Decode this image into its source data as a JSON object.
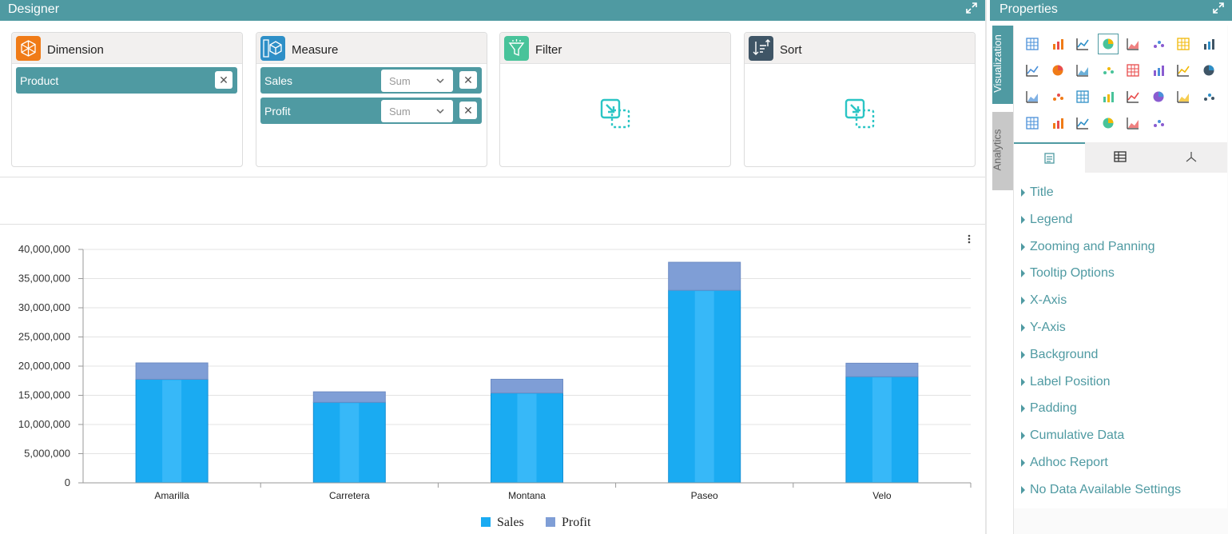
{
  "designer": {
    "title": "Designer",
    "wells": {
      "dimension": {
        "label": "Dimension",
        "fields": [
          {
            "name": "Product"
          }
        ]
      },
      "measure": {
        "label": "Measure",
        "fields": [
          {
            "name": "Sales",
            "aggregation": "Sum"
          },
          {
            "name": "Profit",
            "aggregation": "Sum"
          }
        ]
      },
      "filter": {
        "label": "Filter"
      },
      "sort": {
        "label": "Sort"
      }
    },
    "remove_glyph": "✕"
  },
  "properties": {
    "title": "Properties",
    "side_tabs": [
      "Visualization",
      "Analytics"
    ],
    "sections": [
      "Title",
      "Legend",
      "Zooming and Panning",
      "Tooltip Options",
      "X-Axis",
      "Y-Axis",
      "Background",
      "Label Position",
      "Padding",
      "Cumulative Data",
      "Adhoc Report",
      "No Data Available Settings"
    ],
    "visualization_icons": [
      "grid-icon",
      "combo-chart-icon",
      "bar-chart-icon",
      "area-chart-icon",
      "stacked-bar-icon",
      "line-chart-icon",
      "spline-icon",
      "funnel-icon",
      "pie-chart-icon",
      "donut-chart-icon",
      "step-line-icon",
      "radar-icon",
      "heatmap-icon",
      "curve-icon",
      "gauge-icon",
      "thermometer-icon",
      "scatter-icon",
      "polar-icon",
      "ring-icon",
      "table-icon",
      "pivot-icon",
      "card-icon",
      "candlestick-icon",
      "map-icon",
      "kpi-icon",
      "stacked-area-icon",
      "treemap-icon",
      "sankey-icon",
      "bubble-icon",
      "histogram-icon"
    ],
    "property_tabs": [
      "general-icon",
      "column-icon",
      "axis-icon"
    ]
  },
  "chart_data": {
    "type": "bar",
    "stacked": true,
    "categories": [
      "Amarilla",
      "Carretera",
      "Montana",
      "Paseo",
      "Velo"
    ],
    "series": [
      {
        "name": "Sales",
        "color": "#1aabf2",
        "values": [
          17750000,
          13800000,
          15400000,
          33000000,
          18200000
        ]
      },
      {
        "name": "Profit",
        "color": "#7f9ed6",
        "values": [
          2800000,
          1800000,
          2350000,
          4800000,
          2300000
        ]
      }
    ],
    "ylim": [
      0,
      40000000
    ],
    "yticks": [
      "0",
      "5,000,000",
      "10,000,000",
      "15,000,000",
      "20,000,000",
      "25,000,000",
      "30,000,000",
      "35,000,000",
      "40,000,000"
    ],
    "legend": "bottom",
    "grid": true
  }
}
